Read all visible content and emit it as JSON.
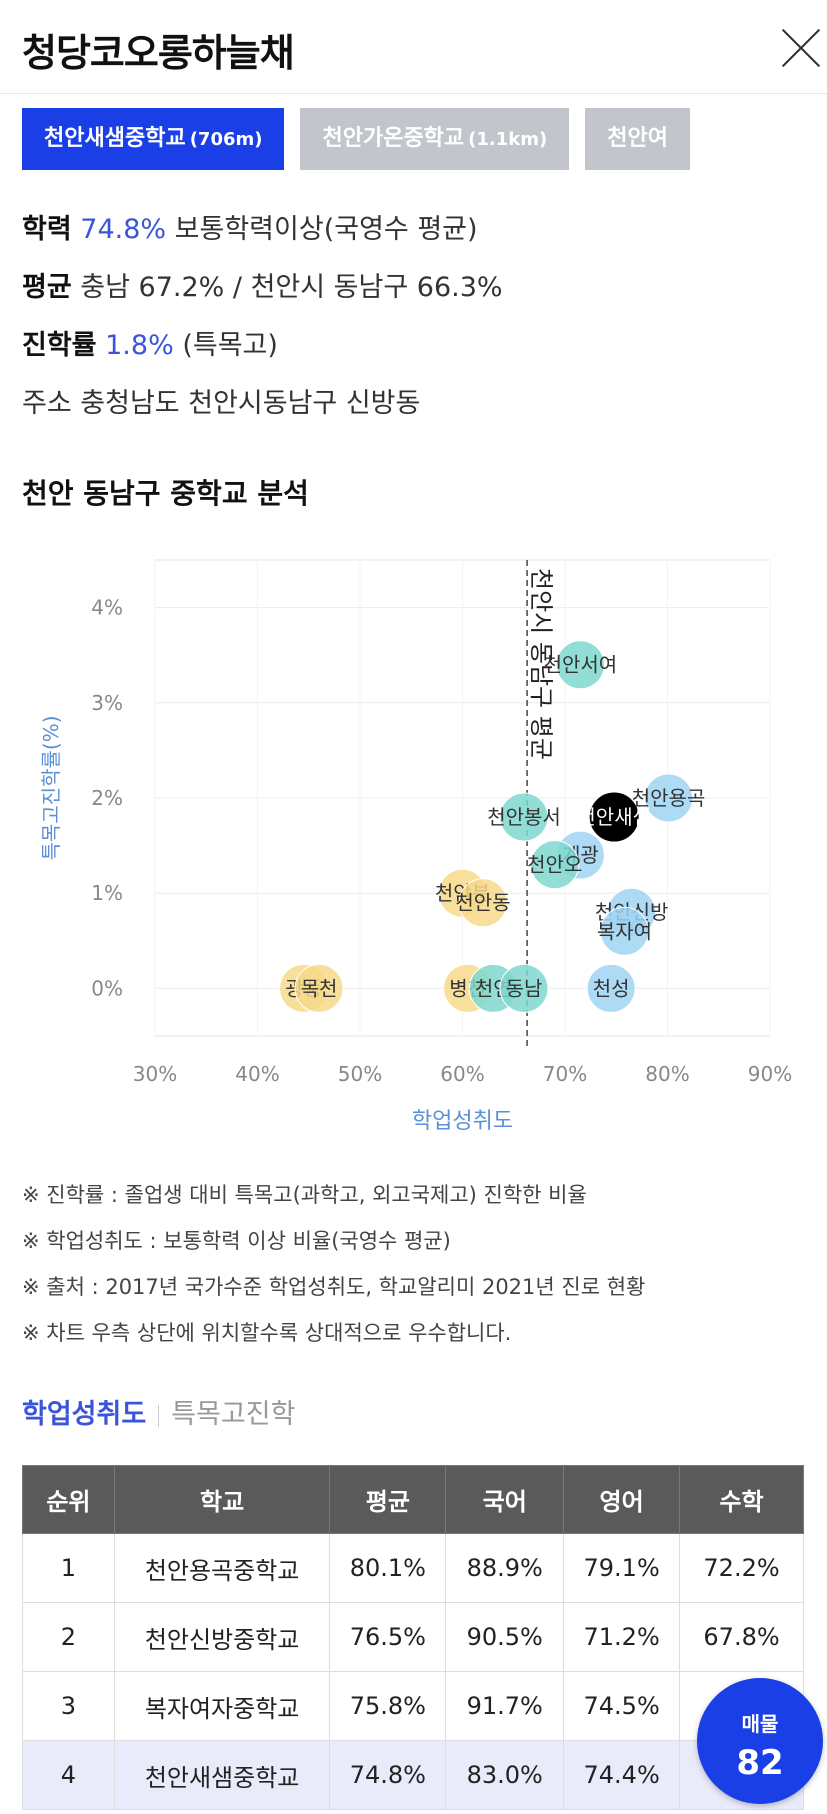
{
  "header": {
    "title": "청당코오롱하늘채"
  },
  "school_tabs": [
    {
      "name": "천안새샘중학교",
      "distance": "(706m)",
      "active": true
    },
    {
      "name": "천안가온중학교",
      "distance": "(1.1km)",
      "active": false
    },
    {
      "name": "천안여",
      "distance": "",
      "active": false
    }
  ],
  "info": {
    "achievement_label": "학력",
    "achievement_value": "74.8%",
    "achievement_desc": "보통학력이상(국영수 평균)",
    "average_label": "평균",
    "average_desc": "충남 67.2% / 천안시 동남구 66.3%",
    "advance_label": "진학률",
    "advance_value": "1.8%",
    "advance_desc": "(특목고)",
    "address_label": "주소",
    "address_value": "충청남도 천안시동남구 신방동"
  },
  "section_title": "천안 동남구 중학교 분석",
  "colors": {
    "accent": "#1a3fe6",
    "bubble_teal": "#7fd8cf",
    "bubble_blue": "#9fd4f2",
    "bubble_yellow": "#f7d98a",
    "bubble_selected": "#000000"
  },
  "chart_data": {
    "type": "scatter",
    "xlabel": "학업성취도",
    "ylabel": "특목고진학률(%)",
    "xlim": [
      30,
      90
    ],
    "ylim": [
      -0.5,
      4.5
    ],
    "x_ticks": [
      "30%",
      "40%",
      "50%",
      "60%",
      "70%",
      "80%",
      "90%"
    ],
    "x_tick_values": [
      30,
      40,
      50,
      60,
      70,
      80,
      90
    ],
    "y_ticks": [
      "0%",
      "1%",
      "2%",
      "3%",
      "4%"
    ],
    "y_tick_values": [
      0,
      1,
      2,
      3,
      4
    ],
    "reference_line": {
      "x": 66.3,
      "label": "천안시 동남구 평균"
    },
    "points": [
      {
        "label": "천안서여",
        "x": 71.5,
        "y": 3.4,
        "group": "teal"
      },
      {
        "label": "천안용곡",
        "x": 80.1,
        "y": 2.0,
        "group": "blue"
      },
      {
        "label": "천안새샘",
        "x": 74.8,
        "y": 1.8,
        "group": "selected"
      },
      {
        "label": "천안봉서",
        "x": 66.0,
        "y": 1.8,
        "group": "teal"
      },
      {
        "label": "계광",
        "x": 71.5,
        "y": 1.4,
        "group": "blue"
      },
      {
        "label": "천안오",
        "x": 69.0,
        "y": 1.3,
        "group": "teal"
      },
      {
        "label": "천안신방",
        "x": 76.5,
        "y": 0.8,
        "group": "blue"
      },
      {
        "label": "복자여",
        "x": 75.8,
        "y": 0.6,
        "group": "blue"
      },
      {
        "label": "천안분",
        "x": 60.0,
        "y": 1.0,
        "group": "yellow"
      },
      {
        "label": "천안동",
        "x": 62.0,
        "y": 0.9,
        "group": "yellow"
      },
      {
        "label": "광풍",
        "x": 44.5,
        "y": 0.0,
        "group": "yellow"
      },
      {
        "label": "목천",
        "x": 46.0,
        "y": 0.0,
        "group": "yellow"
      },
      {
        "label": "병천",
        "x": 60.5,
        "y": 0.0,
        "group": "yellow"
      },
      {
        "label": "천연",
        "x": 63.0,
        "y": 0.0,
        "group": "teal"
      },
      {
        "label": "동남",
        "x": 66.0,
        "y": 0.0,
        "group": "teal"
      },
      {
        "label": "천성",
        "x": 74.5,
        "y": 0.0,
        "group": "blue"
      }
    ]
  },
  "notes": [
    "※ 진학률 : 졸업생 대비 특목고(과학고, 외고국제고) 진학한 비율",
    "※ 학업성취도 : 보통학력 이상 비율(국영수 평균)",
    "※ 출처 : 2017년 국가수준 학업성취도, 학교알리미 2021년 진로 현황",
    "※ 차트 우측 상단에 위치할수록 상대적으로 우수합니다."
  ],
  "subtabs": [
    {
      "label": "학업성취도",
      "active": true
    },
    {
      "label": "특목고진학",
      "active": false
    }
  ],
  "table": {
    "headers": [
      "순위",
      "학교",
      "평균",
      "국어",
      "영어",
      "수학"
    ],
    "rows": [
      {
        "cells": [
          "1",
          "천안용곡중학교",
          "80.1%",
          "88.9%",
          "79.1%",
          "72.2%"
        ],
        "highlight": false
      },
      {
        "cells": [
          "2",
          "천안신방중학교",
          "76.5%",
          "90.5%",
          "71.2%",
          "67.8%"
        ],
        "highlight": false
      },
      {
        "cells": [
          "3",
          "복자여자중학교",
          "75.8%",
          "91.7%",
          "74.5%",
          ""
        ],
        "highlight": false
      },
      {
        "cells": [
          "4",
          "천안새샘중학교",
          "74.8%",
          "83.0%",
          "74.4%",
          ""
        ],
        "highlight": true
      }
    ]
  },
  "badge": {
    "label": "매물",
    "count": "82"
  }
}
